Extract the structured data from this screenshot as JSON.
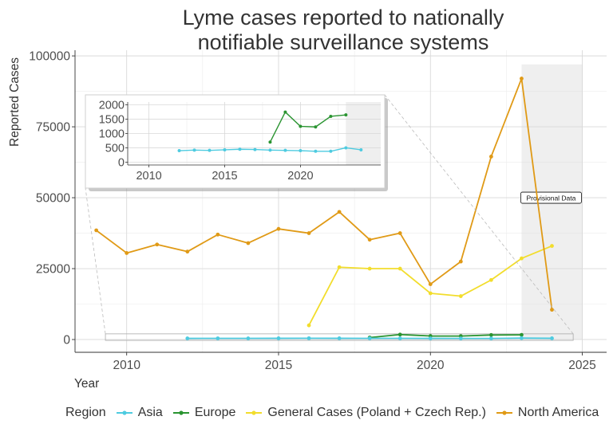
{
  "chart_data": {
    "type": "line",
    "title_line1": "Lyme cases reported to nationally",
    "title_line2": "notifiable surveillance systems",
    "xlabel": "Year",
    "ylabel": "Reported Cases",
    "xlim": [
      2008.3,
      2025.8
    ],
    "ylim": [
      -4500,
      102000
    ],
    "x_ticks": [
      2010,
      2015,
      2020,
      2025
    ],
    "y_ticks": [
      0,
      25000,
      50000,
      75000,
      100000
    ],
    "y_tick_labels": [
      "0",
      "25000",
      "50000",
      "75000",
      "100000"
    ],
    "provisional_range": [
      2023,
      2025
    ],
    "provisional_label": "Provisional Data",
    "series": [
      {
        "name": "Asia",
        "color": "#4ecbe0",
        "x": [
          2012,
          2013,
          2014,
          2015,
          2016,
          2017,
          2018,
          2019,
          2020,
          2021,
          2022,
          2023,
          2024
        ],
        "values": [
          400,
          420,
          410,
          430,
          450,
          440,
          420,
          410,
          400,
          380,
          380,
          500,
          430
        ]
      },
      {
        "name": "Europe",
        "color": "#2a9431",
        "x": [
          2018,
          2019,
          2020,
          2021,
          2022,
          2023
        ],
        "values": [
          700,
          1750,
          1250,
          1230,
          1600,
          1650
        ]
      },
      {
        "name": "General Cases (Poland + Czech Rep.)",
        "color": "#f2dd2c",
        "x": [
          2016,
          2017,
          2018,
          2019,
          2020,
          2021,
          2022,
          2023,
          2024
        ],
        "values": [
          5000,
          25500,
          25000,
          25000,
          16300,
          15300,
          21000,
          28600,
          33000
        ]
      },
      {
        "name": "North America",
        "color": "#e09a16",
        "x": [
          2009,
          2010,
          2011,
          2012,
          2013,
          2014,
          2015,
          2016,
          2017,
          2018,
          2019,
          2020,
          2021,
          2022,
          2023,
          2024
        ],
        "values": [
          38500,
          30500,
          33500,
          31000,
          37000,
          34000,
          39000,
          37500,
          45000,
          35200,
          37500,
          19500,
          27500,
          64500,
          92000,
          10500
        ]
      }
    ],
    "inset": {
      "xlim": [
        2008.6,
        2025.3
      ],
      "ylim": [
        -100,
        2100
      ],
      "x_ticks": [
        2010,
        2015,
        2020
      ],
      "y_ticks": [
        0,
        500,
        1000,
        1500,
        2000
      ],
      "y_tick_labels": [
        "0",
        "500",
        "1000",
        "1500",
        "2000"
      ],
      "series_shown": [
        "Asia",
        "Europe"
      ]
    },
    "legend": {
      "title": "Region",
      "position": "bottom",
      "entries": [
        "Asia",
        "Europe",
        "General Cases (Poland + Czech Rep.)",
        "North America"
      ]
    }
  }
}
